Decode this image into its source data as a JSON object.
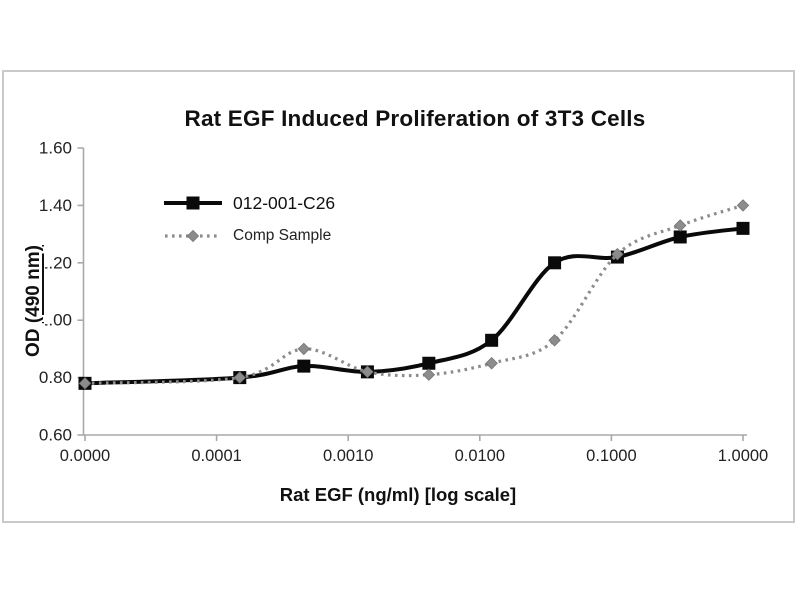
{
  "title": "Rat EGF Induced Proliferation of 3T3 Cells",
  "axis": {
    "x_title": "Rat EGF (ng/ml) [log scale]",
    "y_title_prefix": "OD ",
    "y_title_underlined": "(490 nm)"
  },
  "colors": {
    "series_main": "#0a0a0a",
    "series_comp": "#8c8c8c",
    "axis_line": "#a8a8a8",
    "frame_border": "#c9c9c9",
    "text": "#222222"
  },
  "chart_data": {
    "type": "line",
    "title": "Rat EGF Induced Proliferation of 3T3 Cells",
    "xlabel": "Rat EGF (ng/ml) [log scale]",
    "ylabel": "OD (490 nm)",
    "x_scale": "log (with leading zero-dose point)",
    "grid": false,
    "legend_position": "upper-left inside plot",
    "ylim": [
      0.6,
      1.6
    ],
    "y_tick_labels": [
      "0.60",
      "0.80",
      "1.00",
      "1.20",
      "1.40",
      "1.60"
    ],
    "x_tick_labels": [
      "0.0000",
      "0.0001",
      "0.0010",
      "0.0100",
      "0.1000",
      "1.0000"
    ],
    "x": [
      0,
      0.00015,
      0.00046,
      0.0014,
      0.0041,
      0.0123,
      0.037,
      0.1111,
      0.3333,
      1.0
    ],
    "series": [
      {
        "name": "012-001-C26",
        "line": "solid",
        "marker": "square",
        "color": "#0a0a0a",
        "values": [
          0.78,
          0.8,
          0.84,
          0.82,
          0.85,
          0.93,
          1.2,
          1.22,
          1.29,
          1.32
        ]
      },
      {
        "name": "Comp Sample",
        "line": "dotted",
        "marker": "diamond",
        "color": "#8c8c8c",
        "values": [
          0.78,
          0.8,
          0.9,
          0.82,
          0.81,
          0.85,
          0.93,
          1.23,
          1.33,
          1.4
        ]
      }
    ]
  }
}
